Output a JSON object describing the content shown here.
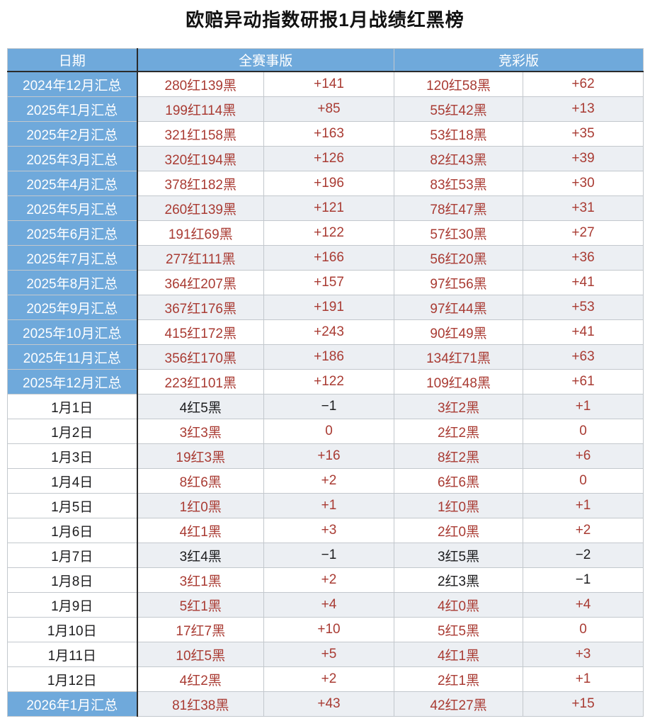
{
  "title": "欧赔异动指数研报1月战绩红黑榜",
  "columns": {
    "date": "日期",
    "all_matches": "全赛事版",
    "jingcai": "竞彩版"
  },
  "colors": {
    "header_blue": "#6fa9db",
    "row_alt_gray": "#eceff3",
    "red_text": "#a93b33",
    "black_text": "#1c1c1e",
    "section_border_dark": "#2b2b2b",
    "grid_border": "#c3c8cd"
  },
  "rows": [
    {
      "date": "2024年12月汇总",
      "date_style": "summary",
      "cells": [
        {
          "text": "280红139黑",
          "color": "red"
        },
        {
          "text": "+141",
          "color": "red"
        },
        {
          "text": "120红58黑",
          "color": "red"
        },
        {
          "text": "+62",
          "color": "red"
        }
      ]
    },
    {
      "date": "2025年1月汇总",
      "date_style": "summary",
      "cells": [
        {
          "text": "199红114黑",
          "color": "red"
        },
        {
          "text": "+85",
          "color": "red"
        },
        {
          "text": "55红42黑",
          "color": "red"
        },
        {
          "text": "+13",
          "color": "red"
        }
      ]
    },
    {
      "date": "2025年2月汇总",
      "date_style": "summary",
      "cells": [
        {
          "text": "321红158黑",
          "color": "red"
        },
        {
          "text": "+163",
          "color": "red"
        },
        {
          "text": "53红18黑",
          "color": "red"
        },
        {
          "text": "+35",
          "color": "red"
        }
      ]
    },
    {
      "date": "2025年3月汇总",
      "date_style": "summary",
      "cells": [
        {
          "text": "320红194黑",
          "color": "red"
        },
        {
          "text": "+126",
          "color": "red"
        },
        {
          "text": "82红43黑",
          "color": "red"
        },
        {
          "text": "+39",
          "color": "red"
        }
      ]
    },
    {
      "date": "2025年4月汇总",
      "date_style": "summary",
      "cells": [
        {
          "text": "378红182黑",
          "color": "red"
        },
        {
          "text": "+196",
          "color": "red"
        },
        {
          "text": "83红53黑",
          "color": "red"
        },
        {
          "text": "+30",
          "color": "red"
        }
      ]
    },
    {
      "date": "2025年5月汇总",
      "date_style": "summary",
      "cells": [
        {
          "text": "260红139黑",
          "color": "red"
        },
        {
          "text": "+121",
          "color": "red"
        },
        {
          "text": "78红47黑",
          "color": "red"
        },
        {
          "text": "+31",
          "color": "red"
        }
      ]
    },
    {
      "date": "2025年6月汇总",
      "date_style": "summary",
      "cells": [
        {
          "text": "191红69黑",
          "color": "red"
        },
        {
          "text": "+122",
          "color": "red"
        },
        {
          "text": "57红30黑",
          "color": "red"
        },
        {
          "text": "+27",
          "color": "red"
        }
      ]
    },
    {
      "date": "2025年7月汇总",
      "date_style": "summary",
      "cells": [
        {
          "text": "277红111黑",
          "color": "red"
        },
        {
          "text": "+166",
          "color": "red"
        },
        {
          "text": "56红20黑",
          "color": "red"
        },
        {
          "text": "+36",
          "color": "red"
        }
      ]
    },
    {
      "date": "2025年8月汇总",
      "date_style": "summary",
      "cells": [
        {
          "text": "364红207黑",
          "color": "red"
        },
        {
          "text": "+157",
          "color": "red"
        },
        {
          "text": "97红56黑",
          "color": "red"
        },
        {
          "text": "+41",
          "color": "red"
        }
      ]
    },
    {
      "date": "2025年9月汇总",
      "date_style": "summary",
      "cells": [
        {
          "text": "367红176黑",
          "color": "red"
        },
        {
          "text": "+191",
          "color": "red"
        },
        {
          "text": "97红44黑",
          "color": "red"
        },
        {
          "text": "+53",
          "color": "red"
        }
      ]
    },
    {
      "date": "2025年10月汇总",
      "date_style": "summary",
      "cells": [
        {
          "text": "415红172黑",
          "color": "red"
        },
        {
          "text": "+243",
          "color": "red"
        },
        {
          "text": "90红49黑",
          "color": "red"
        },
        {
          "text": "+41",
          "color": "red"
        }
      ]
    },
    {
      "date": "2025年11月汇总",
      "date_style": "summary",
      "cells": [
        {
          "text": "356红170黑",
          "color": "red"
        },
        {
          "text": "+186",
          "color": "red"
        },
        {
          "text": "134红71黑",
          "color": "red"
        },
        {
          "text": "+63",
          "color": "red"
        }
      ]
    },
    {
      "date": "2025年12月汇总",
      "date_style": "summary",
      "cells": [
        {
          "text": "223红101黑",
          "color": "red"
        },
        {
          "text": "+122",
          "color": "red"
        },
        {
          "text": "109红48黑",
          "color": "red"
        },
        {
          "text": "+61",
          "color": "red"
        }
      ]
    },
    {
      "date": "1月1日",
      "date_style": "daily",
      "cells": [
        {
          "text": "4红5黑",
          "color": "black"
        },
        {
          "text": "−1",
          "color": "black"
        },
        {
          "text": "3红2黑",
          "color": "red"
        },
        {
          "text": "+1",
          "color": "red"
        }
      ]
    },
    {
      "date": "1月2日",
      "date_style": "daily",
      "cells": [
        {
          "text": "3红3黑",
          "color": "red"
        },
        {
          "text": "0",
          "color": "red"
        },
        {
          "text": "2红2黑",
          "color": "red"
        },
        {
          "text": "0",
          "color": "red"
        }
      ]
    },
    {
      "date": "1月3日",
      "date_style": "daily",
      "cells": [
        {
          "text": "19红3黑",
          "color": "red"
        },
        {
          "text": "+16",
          "color": "red"
        },
        {
          "text": "8红2黑",
          "color": "red"
        },
        {
          "text": "+6",
          "color": "red"
        }
      ]
    },
    {
      "date": "1月4日",
      "date_style": "daily",
      "cells": [
        {
          "text": "8红6黑",
          "color": "red"
        },
        {
          "text": "+2",
          "color": "red"
        },
        {
          "text": "6红6黑",
          "color": "red"
        },
        {
          "text": "0",
          "color": "red"
        }
      ]
    },
    {
      "date": "1月5日",
      "date_style": "daily",
      "cells": [
        {
          "text": "1红0黑",
          "color": "red"
        },
        {
          "text": "+1",
          "color": "red"
        },
        {
          "text": "1红0黑",
          "color": "red"
        },
        {
          "text": "+1",
          "color": "red"
        }
      ]
    },
    {
      "date": "1月6日",
      "date_style": "daily",
      "cells": [
        {
          "text": "4红1黑",
          "color": "red"
        },
        {
          "text": "+3",
          "color": "red"
        },
        {
          "text": "2红0黑",
          "color": "red"
        },
        {
          "text": "+2",
          "color": "red"
        }
      ]
    },
    {
      "date": "1月7日",
      "date_style": "daily",
      "cells": [
        {
          "text": "3红4黑",
          "color": "black"
        },
        {
          "text": "−1",
          "color": "black"
        },
        {
          "text": "3红5黑",
          "color": "black"
        },
        {
          "text": "−2",
          "color": "black"
        }
      ]
    },
    {
      "date": "1月8日",
      "date_style": "daily",
      "cells": [
        {
          "text": "3红1黑",
          "color": "red"
        },
        {
          "text": "+2",
          "color": "red"
        },
        {
          "text": "2红3黑",
          "color": "black"
        },
        {
          "text": "−1",
          "color": "black"
        }
      ]
    },
    {
      "date": "1月9日",
      "date_style": "daily",
      "cells": [
        {
          "text": "5红1黑",
          "color": "red"
        },
        {
          "text": "+4",
          "color": "red"
        },
        {
          "text": "4红0黑",
          "color": "red"
        },
        {
          "text": "+4",
          "color": "red"
        }
      ]
    },
    {
      "date": "1月10日",
      "date_style": "daily",
      "cells": [
        {
          "text": "17红7黑",
          "color": "red"
        },
        {
          "text": "+10",
          "color": "red"
        },
        {
          "text": "5红5黑",
          "color": "red"
        },
        {
          "text": "0",
          "color": "red"
        }
      ]
    },
    {
      "date": "1月11日",
      "date_style": "daily",
      "cells": [
        {
          "text": "10红5黑",
          "color": "red"
        },
        {
          "text": "+5",
          "color": "red"
        },
        {
          "text": "4红1黑",
          "color": "red"
        },
        {
          "text": "+3",
          "color": "red"
        }
      ]
    },
    {
      "date": "1月12日",
      "date_style": "daily",
      "cells": [
        {
          "text": "4红2黑",
          "color": "red"
        },
        {
          "text": "+2",
          "color": "red"
        },
        {
          "text": "2红1黑",
          "color": "red"
        },
        {
          "text": "+1",
          "color": "red"
        }
      ]
    },
    {
      "date": "2026年1月汇总",
      "date_style": "summary",
      "cells": [
        {
          "text": "81红38黑",
          "color": "red"
        },
        {
          "text": "+43",
          "color": "red"
        },
        {
          "text": "42红27黑",
          "color": "red"
        },
        {
          "text": "+15",
          "color": "red"
        }
      ]
    }
  ]
}
